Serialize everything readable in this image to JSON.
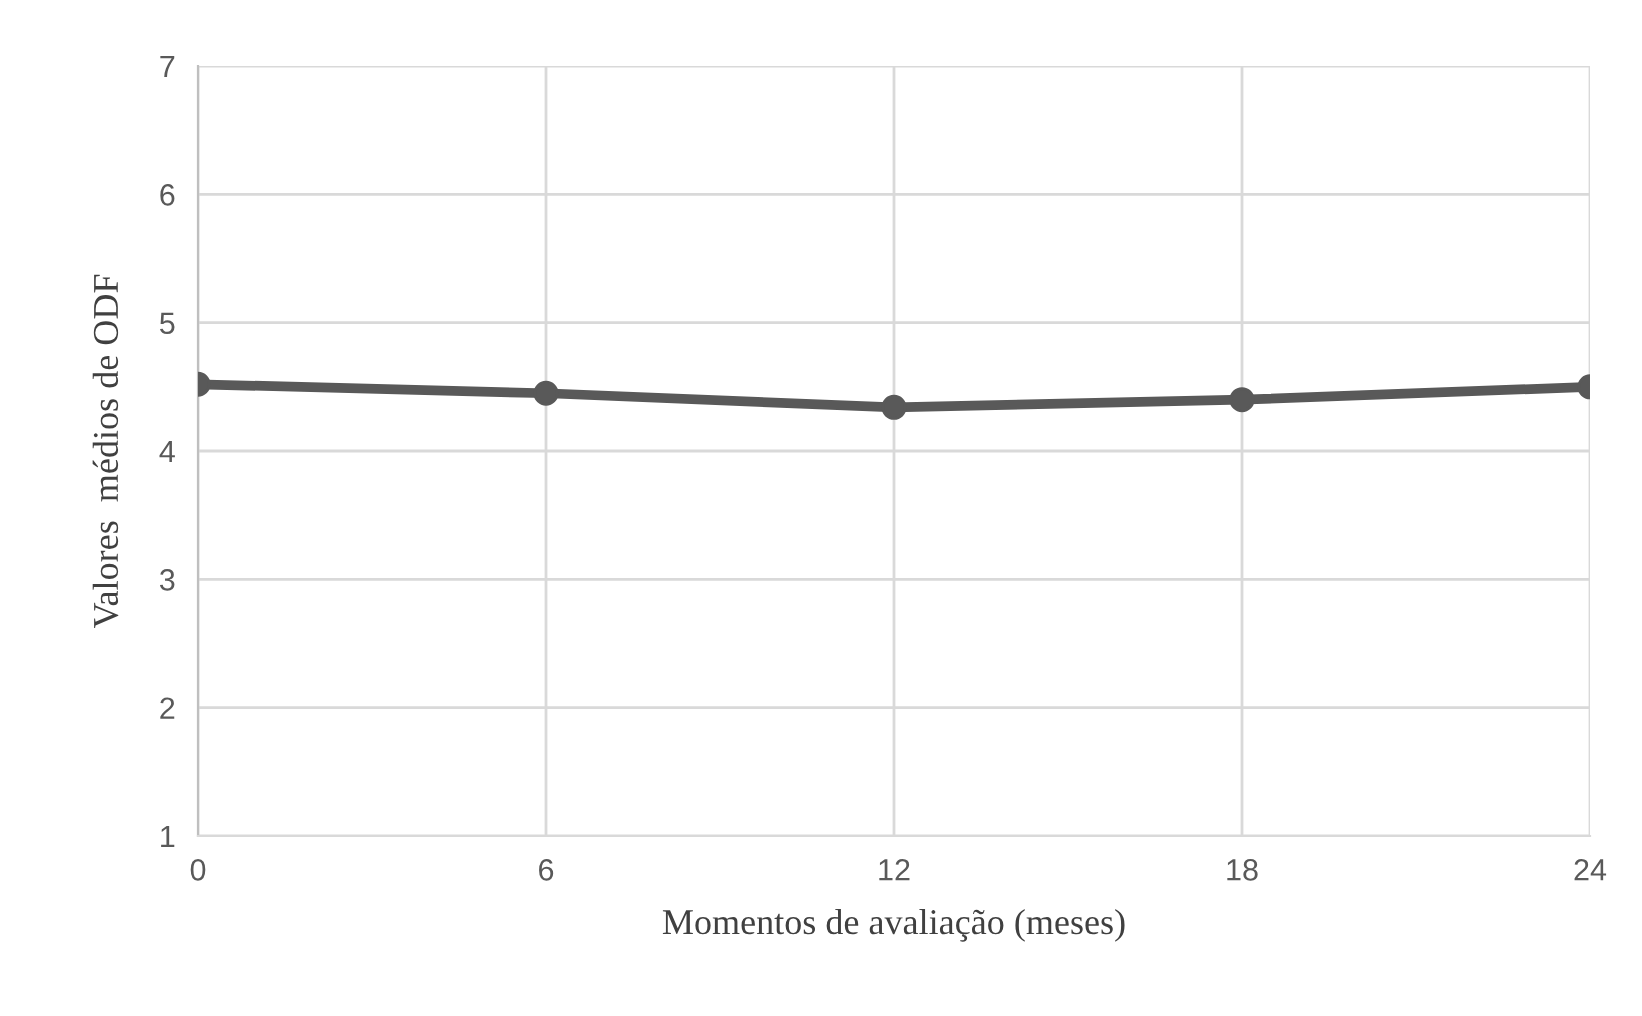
{
  "chart_data": {
    "type": "line",
    "xlabel": "Momentos de avaliação (meses)",
    "ylabel": "Valores  médios de ODF",
    "x": [
      0,
      6,
      12,
      18,
      24
    ],
    "series": [
      {
        "color": "#595959",
        "values": [
          4.52,
          4.45,
          4.34,
          4.4,
          4.5
        ]
      }
    ],
    "xlim": [
      0,
      24
    ],
    "xticks": [
      0,
      6,
      12,
      18,
      24
    ],
    "ylim": [
      1,
      7
    ],
    "yticks": [
      1,
      2,
      3,
      4,
      5,
      6,
      7
    ],
    "grid": true,
    "marker": "circle",
    "line_style": "solid",
    "legend": false
  }
}
